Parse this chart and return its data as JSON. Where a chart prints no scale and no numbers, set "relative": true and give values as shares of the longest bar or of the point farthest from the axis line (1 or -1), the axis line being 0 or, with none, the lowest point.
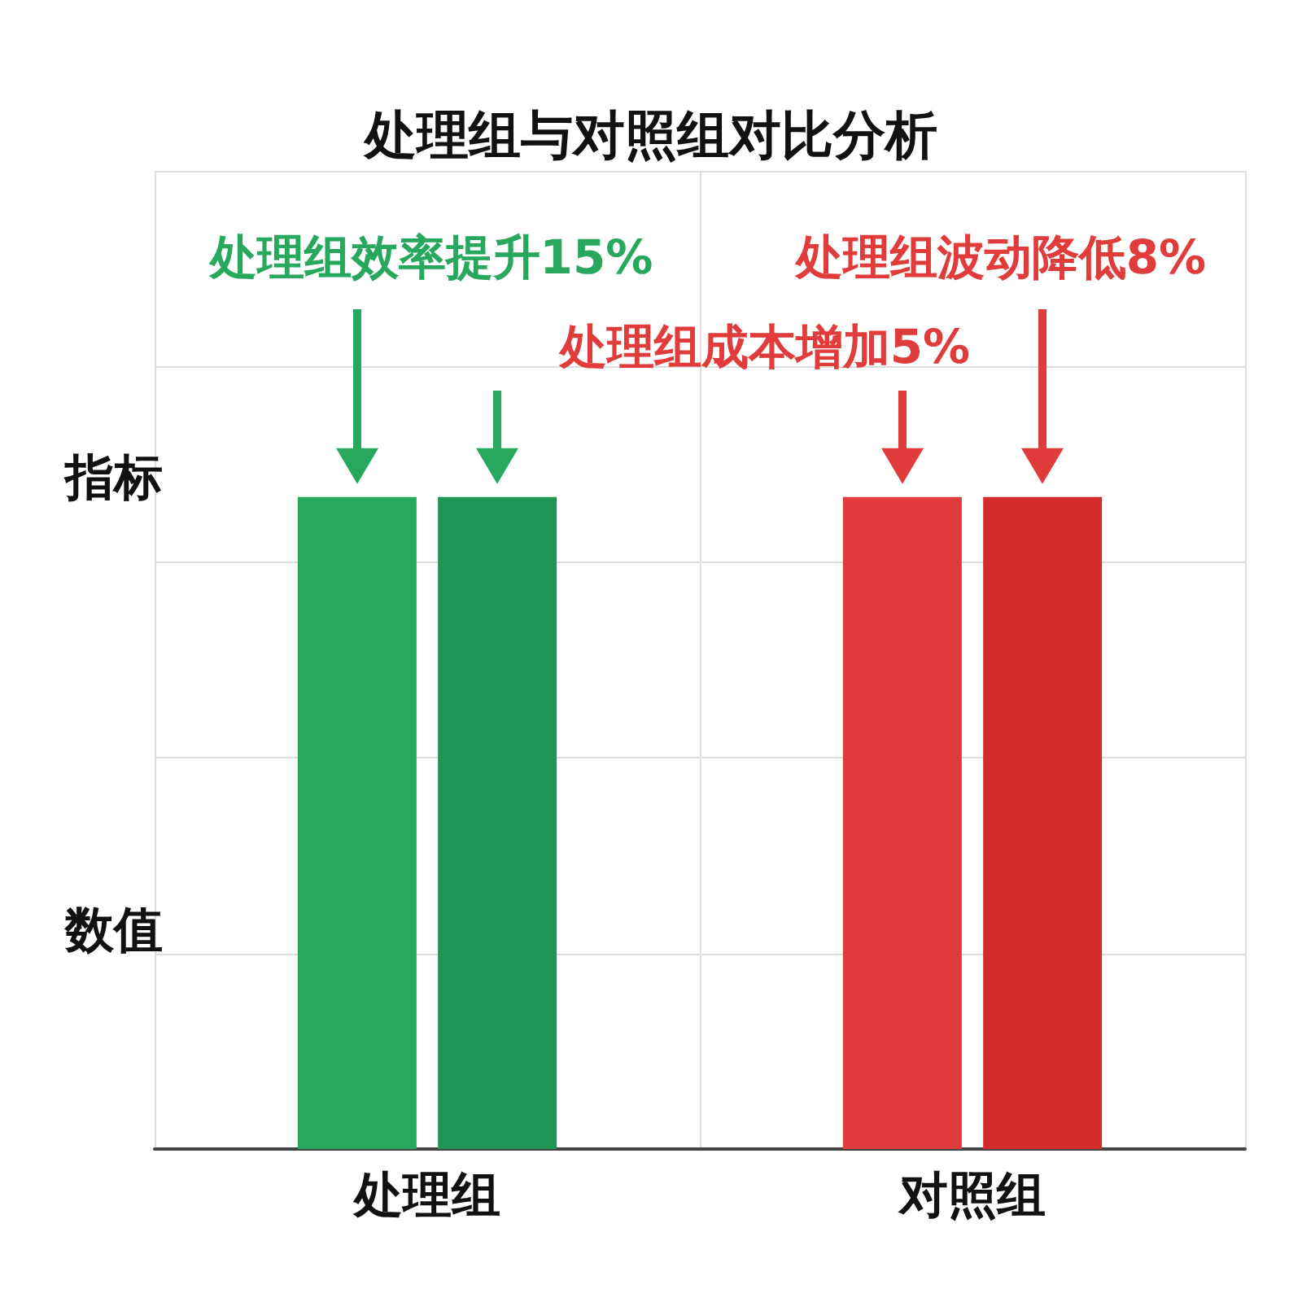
{
  "chart_data": {
    "type": "bar",
    "title": "处理组与对照组对比分析",
    "categories": [
      "处理组",
      "对照组"
    ],
    "relative": true,
    "grid": true,
    "series": [
      {
        "colors": [
          "#27a85c",
          "#e03c3c"
        ],
        "values": [
          1,
          1
        ]
      },
      {
        "colors": [
          "#1f9555",
          "#d42b2b"
        ],
        "values": [
          1,
          1
        ]
      }
    ],
    "annotations": [
      "处理组效率提升15%",
      "处理组波动降低8%",
      "处理组成本增加5%",
      "指标",
      "数值"
    ]
  }
}
